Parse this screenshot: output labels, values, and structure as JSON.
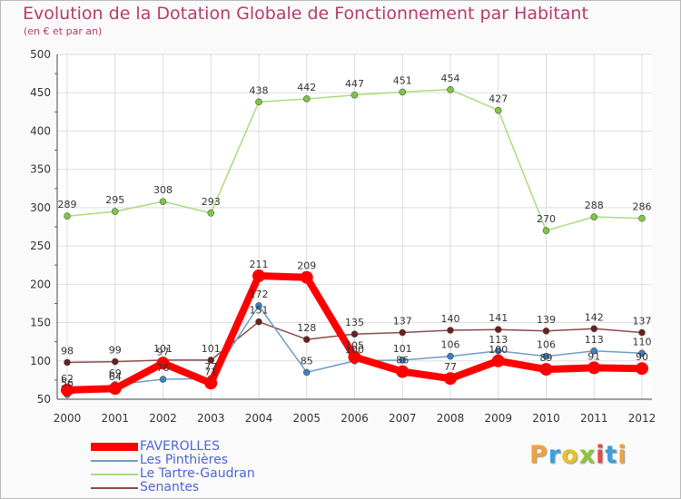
{
  "title": "Evolution de la Dotation Globale de Fonctionnement par Habitant",
  "subtitle": "(en € et par an)",
  "logo": {
    "text": "Proxiti",
    "colors": [
      "#f0a23a",
      "#3aa0dc",
      "#e6c22a",
      "#8cc63c",
      "#e44848",
      "#3aa0dc",
      "#f0a23a"
    ]
  },
  "chart_data": {
    "type": "line",
    "title": "Evolution de la Dotation Globale de Fonctionnement par Habitant",
    "subtitle": "(en € et par an)",
    "xlabel": "",
    "ylabel": "",
    "ylim": [
      50,
      500
    ],
    "yticks": [
      50,
      100,
      150,
      200,
      250,
      300,
      350,
      400,
      450,
      500
    ],
    "x": [
      "2000",
      "2001",
      "2002",
      "2003",
      "2004",
      "2005",
      "2006",
      "2007",
      "2008",
      "2009",
      "2010",
      "2011",
      "2012"
    ],
    "grid": true,
    "legend_position": "bottom-left",
    "series": [
      {
        "name": "FAVEROLLES",
        "color": "#ff0000",
        "marker": "#ff0000",
        "style": "thick",
        "values": [
          62,
          64,
          97,
          71,
          211,
          209,
          105,
          86,
          77,
          100,
          89,
          91,
          90
        ]
      },
      {
        "name": "Les Pinthières",
        "color": "#6e9cc4",
        "marker": "#3a80c4",
        "style": "thin",
        "values": [
          56,
          69,
          76,
          77,
          172,
          85,
          100,
          101,
          106,
          113,
          106,
          113,
          110
        ]
      },
      {
        "name": "Le Tartre-Gaudran",
        "color": "#a8dc80",
        "marker": "#7cc840",
        "style": "thin",
        "values": [
          289,
          295,
          308,
          293,
          438,
          442,
          447,
          451,
          454,
          427,
          270,
          288,
          286
        ]
      },
      {
        "name": "Senantes",
        "color": "#8a4a4a",
        "marker": "#6a1e1e",
        "style": "thin",
        "values": [
          98,
          99,
          101,
          101,
          151,
          128,
          135,
          137,
          140,
          141,
          139,
          142,
          137
        ]
      }
    ],
    "data_labels": [
      {
        "series": 0,
        "labels": [
          "62",
          "64",
          "97",
          "71",
          "211",
          "209",
          "105",
          "86",
          "77",
          "100",
          "89",
          "91",
          "90"
        ]
      },
      {
        "series": 1,
        "labels": [
          "56",
          "69",
          "76",
          "77",
          "172",
          "85",
          "100",
          "101",
          "106",
          "113",
          "106",
          "113",
          "110"
        ]
      },
      {
        "series": 2,
        "labels": [
          "289",
          "295",
          "308",
          "293",
          "438",
          "442",
          "447",
          "451",
          "454",
          "427",
          "270",
          "288",
          "286"
        ]
      },
      {
        "series": 3,
        "labels": [
          "98",
          "99",
          "101",
          "101",
          "151",
          "128",
          "135",
          "137",
          "140",
          "141",
          "139",
          "142",
          "137"
        ]
      }
    ]
  }
}
